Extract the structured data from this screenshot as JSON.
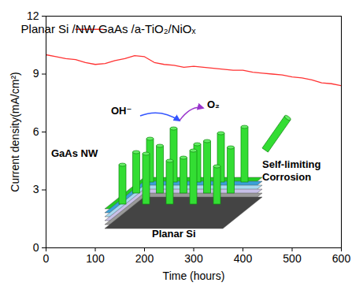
{
  "chart_data": {
    "type": "line",
    "x_label": "Time (hours)",
    "y_label": "Current density(mA/cm²)",
    "x": [
      0,
      20,
      40,
      60,
      80,
      100,
      120,
      140,
      160,
      180,
      200,
      220,
      240,
      260,
      280,
      300,
      320,
      340,
      360,
      380,
      400,
      420,
      440,
      460,
      480,
      500,
      520,
      540,
      560,
      580,
      600
    ],
    "series": [
      {
        "name": "Planar Si /NW GaAs /a-TiO₂/NiOₓ",
        "color": "#ff3333",
        "values": [
          10.0,
          9.9,
          9.8,
          9.75,
          9.6,
          9.5,
          9.55,
          9.7,
          9.8,
          9.95,
          9.9,
          9.6,
          9.5,
          9.45,
          9.35,
          9.4,
          9.35,
          9.3,
          9.25,
          9.2,
          9.2,
          9.1,
          9.05,
          9.0,
          8.95,
          8.85,
          8.8,
          8.7,
          8.55,
          8.5,
          8.4
        ]
      }
    ],
    "xlim": [
      0,
      600
    ],
    "xticks": [
      0,
      100,
      200,
      300,
      400,
      500,
      600
    ],
    "ylim": [
      0,
      12
    ],
    "yticks": [
      0,
      3,
      6,
      9,
      12
    ],
    "legend": "top",
    "annotations": [
      "OH⁻",
      "O₂",
      "GaAs NW",
      "Self-limiting Corrosion",
      "Planar Si"
    ]
  }
}
